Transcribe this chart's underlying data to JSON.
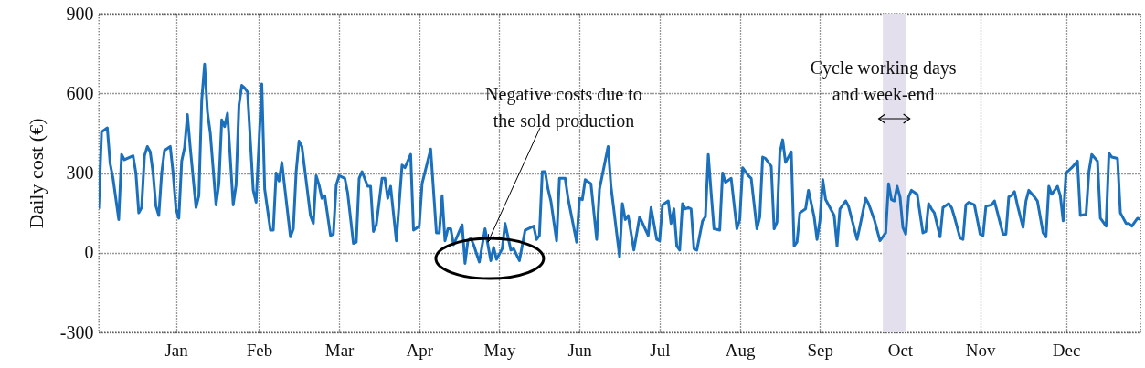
{
  "chart_data": {
    "type": "line",
    "ylabel": "Daily cost (€)",
    "x": [
      "--01-01",
      "--01-02",
      "--01-04",
      "--01-05",
      "--01-06",
      "--01-08",
      "--01-09",
      "--01-10",
      "--01-13",
      "--01-14",
      "--01-15",
      "--01-16",
      "--01-17",
      "--01-18",
      "--01-19",
      "--01-20",
      "--01-21",
      "--01-22",
      "--01-23",
      "--01-24",
      "--01-26",
      "--01-27",
      "--01-28",
      "--01-29",
      "--01-30",
      "--01-31",
      "--02-01",
      "--02-02",
      "--02-04",
      "--02-05",
      "--02-06",
      "--02-07",
      "--02-08",
      "--02-09",
      "--02-11",
      "--02-12",
      "--02-13",
      "--02-14",
      "--02-15",
      "--02-17",
      "--02-18",
      "--02-19",
      "--02-20",
      "--02-21",
      "--02-22",
      "--02-24",
      "--02-25",
      "--02-27",
      "--02-28",
      "--03-02",
      "--03-03",
      "--03-04",
      "--03-05",
      "--03-06",
      "--03-09",
      "--03-10",
      "--03-11",
      "--03-12",
      "--03-13",
      "--03-16",
      "--03-17",
      "--03-18",
      "--03-19",
      "--03-20",
      "--03-21",
      "--03-23",
      "--03-24",
      "--03-25",
      "--03-26",
      "--03-28",
      "--03-29",
      "--03-31",
      "--04-01",
      "--04-02",
      "--04-03",
      "--04-05",
      "--04-06",
      "--04-07",
      "--04-08",
      "--04-10",
      "--04-11",
      "--04-12",
      "--04-13",
      "--04-15",
      "--04-17",
      "--04-18",
      "--04-20",
      "--04-21",
      "--04-23",
      "--04-24",
      "--04-27",
      "--04-29",
      "--04-30",
      "--05-01",
      "--05-02",
      "--05-03",
      "--05-04",
      "--05-05",
      "--05-06",
      "--05-08",
      "--05-09",
      "--05-10",
      "--05-11",
      "--05-12",
      "--05-14",
      "--05-16",
      "--05-18",
      "--05-19",
      "--05-20",
      "--05-22",
      "--05-23",
      "--05-25",
      "--05-26",
      "--05-28",
      "--05-30",
      "--06-02",
      "--06-03",
      "--06-04",
      "--06-05",
      "--06-06",
      "--06-07",
      "--06-08",
      "--06-10",
      "--06-11",
      "--06-13",
      "--06-14",
      "--06-17",
      "--06-18",
      "--06-19",
      "--06-20",
      "--06-22",
      "--06-24",
      "--06-25",
      "--06-28",
      "--06-29",
      "--07-02",
      "--07-03",
      "--07-04",
      "--07-05",
      "--07-07",
      "--07-09",
      "--07-12",
      "--07-13",
      "--07-15",
      "--07-16",
      "--07-17",
      "--07-19",
      "--07-20",
      "--07-21",
      "--07-22",
      "--07-23",
      "--07-24",
      "--07-25",
      "--07-26",
      "--07-27",
      "--07-28",
      "--07-29",
      "--07-31",
      "--08-01",
      "--08-02",
      "--08-03",
      "--08-04",
      "--08-06",
      "--08-07",
      "--08-08",
      "--08-10",
      "--08-12",
      "--08-13",
      "--08-14",
      "--08-16",
      "--08-17",
      "--08-19",
      "--08-20",
      "--08-21",
      "--08-22",
      "--08-24",
      "--08-25",
      "--08-26",
      "--08-27",
      "--08-28",
      "--08-29",
      "--08-31",
      "--09-01",
      "--09-02",
      "--09-03",
      "--09-05",
      "--09-06",
      "--09-08",
      "--09-09",
      "--09-10",
      "--09-11",
      "--09-12",
      "--09-15",
      "--09-16",
      "--09-17",
      "--09-19",
      "--09-20",
      "--09-23",
      "--09-24",
      "--09-26",
      "--09-27",
      "--09-29",
      "--10-01",
      "--10-03",
      "--10-04",
      "--10-05",
      "--10-06",
      "--10-07",
      "--10-08",
      "--10-09",
      "--10-10",
      "--10-11",
      "--10-12",
      "--10-14",
      "--10-16",
      "--10-17",
      "--10-18",
      "--10-19",
      "--10-20",
      "--10-22",
      "--10-23",
      "--10-25",
      "--10-26",
      "--10-27",
      "--10-29",
      "--10-30",
      "--10-31",
      "--11-01",
      "--11-03",
      "--11-05",
      "--11-06",
      "--11-07",
      "--11-09",
      "--11-10",
      "--11-13",
      "--11-14",
      "--11-15",
      "--11-16",
      "--11-17",
      "--11-18",
      "--11-20",
      "--11-21",
      "--11-22",
      "--11-24",
      "--11-25",
      "--11-27",
      "--11-28",
      "--11-29",
      "--11-30",
      "--12-02",
      "--12-03",
      "--12-04",
      "--12-05",
      "--12-07",
      "--12-09",
      "--12-10",
      "--12-12",
      "--12-13",
      "--12-14",
      "--12-16",
      "--12-17",
      "--12-19",
      "--12-20",
      "--12-21",
      "--12-23",
      "--12-24",
      "--12-26",
      "--12-27",
      "--12-28",
      "--12-30",
      "--12-31"
    ],
    "series": [
      {
        "color": "#1a70bd",
        "values": [
          165,
          455,
          470,
          335,
          280,
          125,
          370,
          350,
          365,
          300,
          150,
          170,
          365,
          400,
          380,
          300,
          175,
          140,
          300,
          385,
          400,
          300,
          165,
          130,
          345,
          395,
          520,
          395,
          170,
          215,
          575,
          710,
          530,
          450,
          180,
          260,
          500,
          475,
          525,
          180,
          255,
          555,
          630,
          620,
          605,
          235,
          190,
          635,
          240,
          85,
          85,
          300,
          270,
          340,
          60,
          90,
          305,
          420,
          400,
          140,
          110,
          290,
          255,
          205,
          215,
          65,
          70,
          255,
          290,
          280,
          225,
          35,
          40,
          280,
          305,
          250,
          250,
          80,
          105,
          280,
          280,
          205,
          250,
          45,
          330,
          320,
          370,
          85,
          100,
          260,
          390,
          75,
          75,
          215,
          45,
          90,
          90,
          30,
          55,
          105,
          -40,
          45,
          55,
          30,
          -35,
          90,
          -30,
          20,
          -25,
          15,
          110,
          10,
          15,
          -30,
          85,
          100,
          50,
          65,
          305,
          305,
          240,
          195,
          45,
          280,
          280,
          205,
          40,
          205,
          200,
          275,
          260,
          50,
          240,
          400,
          250,
          -15,
          185,
          125,
          140,
          10,
          135,
          65,
          170,
          50,
          45,
          180,
          195,
          110,
          165,
          25,
          10,
          185,
          165,
          170,
          165,
          15,
          10,
          120,
          135,
          370,
          225,
          90,
          85,
          300,
          265,
          280,
          90,
          125,
          320,
          290,
          280,
          90,
          135,
          360,
          355,
          325,
          90,
          115,
          375,
          425,
          340,
          380,
          25,
          40,
          150,
          165,
          235,
          135,
          50,
          120,
          275,
          200,
          140,
          25,
          165,
          195,
          175,
          50,
          100,
          205,
          185,
          125,
          45,
          75,
          260,
          200,
          195,
          250,
          210,
          95,
          70,
          210,
          235,
          220,
          75,
          80,
          185,
          165,
          150,
          60,
          170,
          185,
          170,
          135,
          55,
          50,
          180,
          190,
          180,
          70,
          65,
          175,
          180,
          195,
          70,
          70,
          210,
          215,
          230,
          180,
          95,
          195,
          235,
          210,
          195,
          75,
          60,
          250,
          220,
          250,
          215,
          120,
          300,
          320,
          345,
          140,
          145,
          305,
          370,
          345,
          130,
          100,
          375,
          360,
          355,
          150,
          110,
          110,
          100,
          130,
          125
        ]
      }
    ],
    "xlim": [
      "--01-01",
      "--12-31"
    ],
    "xticks": [
      {
        "value": "--01-28",
        "label": "Jan"
      },
      {
        "value": "--02-26",
        "label": "Feb"
      },
      {
        "value": "--03-26",
        "label": "Mar"
      },
      {
        "value": "--04-23",
        "label": "Apr"
      },
      {
        "value": "--05-21",
        "label": "May"
      },
      {
        "value": "--06-18",
        "label": "Jun"
      },
      {
        "value": "--07-16",
        "label": "Jul"
      },
      {
        "value": "--08-13",
        "label": "Aug"
      },
      {
        "value": "--09-10",
        "label": "Sep"
      },
      {
        "value": "--10-08",
        "label": "Oct"
      },
      {
        "value": "--11-05",
        "label": "Nov"
      },
      {
        "value": "--12-05",
        "label": "Dec"
      }
    ],
    "ylim": [
      -300,
      900
    ],
    "yticks": [
      -300,
      0,
      300,
      600,
      900
    ],
    "grid": true,
    "bands": [
      {
        "axis": "x",
        "from": "--10-02",
        "to": "--10-10",
        "color": "#e4dfec"
      }
    ],
    "annotations": [
      {
        "text": "Negative costs due to\nthe sold production",
        "x": "--05-17",
        "y": 40
      },
      "Cycle working days\nand week-end"
    ]
  }
}
